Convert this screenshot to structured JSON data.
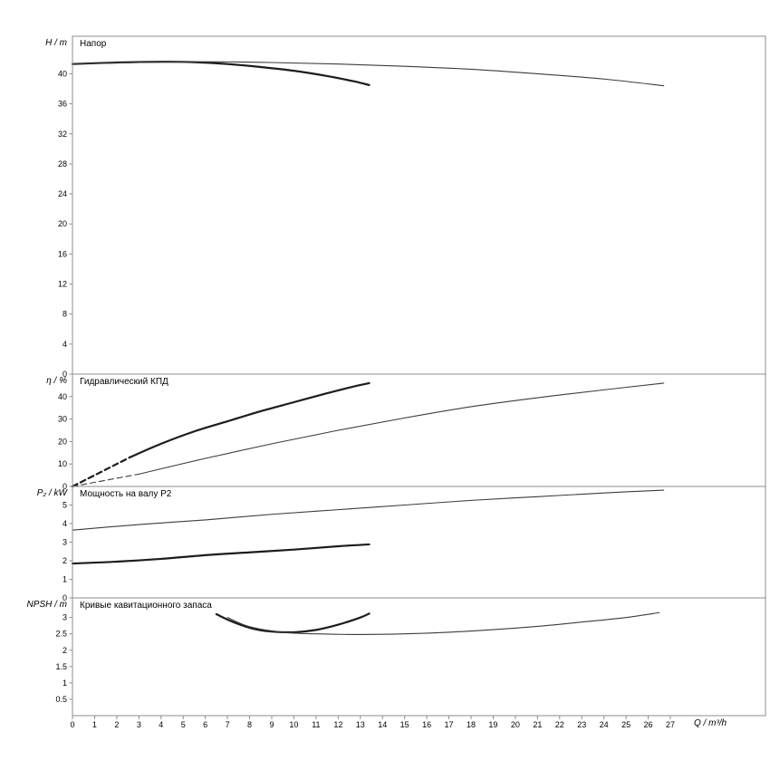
{
  "figure": {
    "background": "#ffffff",
    "frame_color": "#8c8c8c",
    "curve_thick_color": "#1c1c1c",
    "curve_thin_color": "#3c3c3c",
    "x_axis": {
      "label": "Q / m³/h",
      "min": 0,
      "max": 27,
      "tick_step": 1,
      "ticks": [
        0,
        1,
        2,
        3,
        4,
        5,
        6,
        7,
        8,
        9,
        10,
        11,
        12,
        13,
        14,
        15,
        16,
        17,
        18,
        19,
        20,
        21,
        22,
        23,
        24,
        25,
        26,
        27
      ]
    }
  },
  "chart_data": [
    {
      "type": "line",
      "id": "head",
      "title": "Напор",
      "ylabel": "H / m",
      "xlabel": "Q / m³/h",
      "ylim": [
        0,
        45
      ],
      "yticks": [
        0,
        4,
        8,
        12,
        16,
        20,
        24,
        28,
        32,
        36,
        40
      ],
      "grid": false,
      "legend": "none",
      "series": [
        {
          "name": "head-curve-selected",
          "style": "thick",
          "points": [
            [
              0,
              41.3
            ],
            [
              2,
              41.5
            ],
            [
              4,
              41.6
            ],
            [
              5.5,
              41.55
            ],
            [
              7,
              41.3
            ],
            [
              8.5,
              40.9
            ],
            [
              10,
              40.4
            ],
            [
              11.5,
              39.7
            ],
            [
              12.7,
              39.0
            ],
            [
              13.4,
              38.5
            ]
          ]
        },
        {
          "name": "head-curve-max",
          "style": "thin",
          "points": [
            [
              0,
              41.3
            ],
            [
              3,
              41.5
            ],
            [
              6,
              41.6
            ],
            [
              9,
              41.5
            ],
            [
              12,
              41.3
            ],
            [
              15,
              41.0
            ],
            [
              18,
              40.6
            ],
            [
              21,
              40.0
            ],
            [
              24,
              39.3
            ],
            [
              26.7,
              38.4
            ]
          ]
        }
      ]
    },
    {
      "type": "line",
      "id": "efficiency",
      "title": "Гидравлический КПД",
      "ylabel": "η / %",
      "ylim": [
        0,
        50
      ],
      "yticks": [
        0,
        10,
        20,
        30,
        40
      ],
      "grid": false,
      "legend": "none",
      "series": [
        {
          "name": "efficiency-leadin-selected",
          "style": "thick-dashed",
          "points": [
            [
              0,
              0
            ],
            [
              2.6,
              13
            ]
          ]
        },
        {
          "name": "efficiency-curve-selected",
          "style": "thick",
          "points": [
            [
              2.6,
              13
            ],
            [
              4,
              19
            ],
            [
              5.5,
              24.5
            ],
            [
              7,
              29
            ],
            [
              8.5,
              33.5
            ],
            [
              10,
              37.5
            ],
            [
              11.5,
              41.5
            ],
            [
              12.7,
              44.5
            ],
            [
              13.4,
              46
            ]
          ]
        },
        {
          "name": "efficiency-leadin-max",
          "style": "thin-dashed",
          "points": [
            [
              0,
              0
            ],
            [
              3,
              5.5
            ]
          ]
        },
        {
          "name": "efficiency-curve-max",
          "style": "thin",
          "points": [
            [
              3,
              5.5
            ],
            [
              6,
              12.5
            ],
            [
              9,
              19
            ],
            [
              12,
              25
            ],
            [
              15,
              30.5
            ],
            [
              18,
              35.5
            ],
            [
              21,
              39.5
            ],
            [
              24,
              43
            ],
            [
              26.7,
              46
            ]
          ]
        }
      ]
    },
    {
      "type": "line",
      "id": "power",
      "title": "Мощность на валу P2",
      "ylabel": "P₂ / kW",
      "ylim": [
        0,
        6
      ],
      "yticks": [
        0,
        1,
        2,
        3,
        4,
        5
      ],
      "grid": false,
      "legend": "none",
      "series": [
        {
          "name": "power-curve-max",
          "style": "thin",
          "points": [
            [
              0,
              3.65
            ],
            [
              3,
              3.95
            ],
            [
              6,
              4.2
            ],
            [
              9,
              4.5
            ],
            [
              12,
              4.75
            ],
            [
              15,
              5.0
            ],
            [
              18,
              5.25
            ],
            [
              21,
              5.45
            ],
            [
              24,
              5.65
            ],
            [
              26.7,
              5.8
            ]
          ]
        },
        {
          "name": "power-curve-selected",
          "style": "thick",
          "points": [
            [
              0,
              1.85
            ],
            [
              2,
              1.95
            ],
            [
              4,
              2.1
            ],
            [
              6,
              2.3
            ],
            [
              8,
              2.45
            ],
            [
              10,
              2.6
            ],
            [
              12,
              2.78
            ],
            [
              13.4,
              2.88
            ]
          ]
        }
      ]
    },
    {
      "type": "line",
      "id": "npsh",
      "title": "Кривые кавитационного запаса",
      "ylabel": "NPSH / m",
      "ylim": [
        0,
        3.6
      ],
      "yticks": [
        0.5,
        1,
        1.5,
        2,
        2.5,
        3
      ],
      "grid": false,
      "legend": "none",
      "series": [
        {
          "name": "npsh-curve-selected",
          "style": "thick",
          "points": [
            [
              6.5,
              3.1
            ],
            [
              7.3,
              2.85
            ],
            [
              8.2,
              2.65
            ],
            [
              9,
              2.57
            ],
            [
              10,
              2.55
            ],
            [
              11,
              2.62
            ],
            [
              12,
              2.78
            ],
            [
              13,
              3.0
            ],
            [
              13.4,
              3.12
            ]
          ]
        },
        {
          "name": "npsh-curve-max",
          "style": "thin",
          "points": [
            [
              7,
              3.0
            ],
            [
              8,
              2.72
            ],
            [
              9.5,
              2.55
            ],
            [
              11,
              2.5
            ],
            [
              13,
              2.48
            ],
            [
              15,
              2.5
            ],
            [
              17,
              2.55
            ],
            [
              19,
              2.63
            ],
            [
              21,
              2.73
            ],
            [
              23,
              2.86
            ],
            [
              25,
              3.0
            ],
            [
              26.5,
              3.15
            ]
          ]
        }
      ]
    }
  ]
}
